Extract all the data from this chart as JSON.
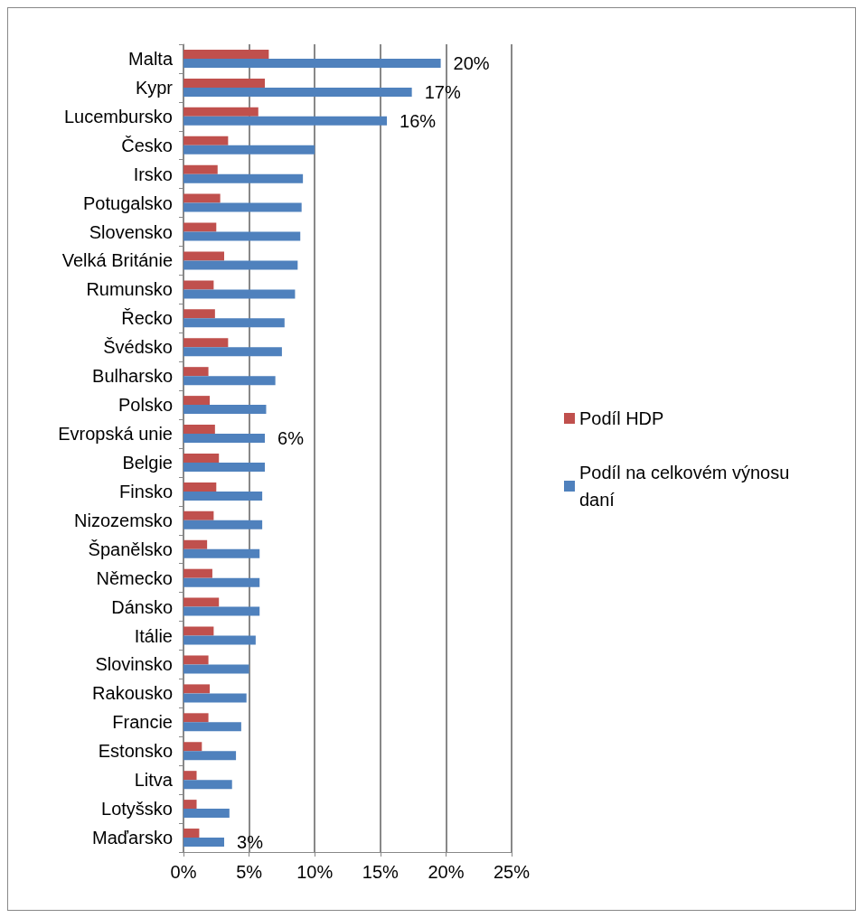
{
  "chart_data": {
    "type": "bar",
    "orientation": "horizontal",
    "categories": [
      "Malta",
      "Kypr",
      "Lucembursko",
      "Česko",
      "Irsko",
      "Potugalsko",
      "Slovensko",
      "Velká Británie",
      "Rumunsko",
      "Řecko",
      "Švédsko",
      "Bulharsko",
      "Polsko",
      "Evropská unie",
      "Belgie",
      "Finsko",
      "Nizozemsko",
      "Španělsko",
      "Německo",
      "Dánsko",
      "Itálie",
      "Slovinsko",
      "Rakousko",
      "Francie",
      "Estonsko",
      "Litva",
      "Lotyšsko",
      "Maďarsko"
    ],
    "series": [
      {
        "name": "Podíl HDP",
        "color": "#c0504d",
        "values": [
          6.5,
          6.2,
          5.7,
          3.4,
          2.6,
          2.8,
          2.5,
          3.1,
          2.3,
          2.4,
          3.4,
          1.9,
          2.0,
          2.4,
          2.7,
          2.5,
          2.3,
          1.8,
          2.2,
          2.7,
          2.3,
          1.9,
          2.0,
          1.9,
          1.4,
          1.0,
          1.0,
          1.2
        ]
      },
      {
        "name": "Podíl na celkovém výnosu daní",
        "color": "#4f81bd",
        "values": [
          19.6,
          17.4,
          15.5,
          10.0,
          9.1,
          9.0,
          8.9,
          8.7,
          8.5,
          7.7,
          7.5,
          7.0,
          6.3,
          6.2,
          6.2,
          6.0,
          6.0,
          5.8,
          5.8,
          5.8,
          5.5,
          5.0,
          4.8,
          4.4,
          4.0,
          3.7,
          3.5,
          3.1
        ],
        "value_labels": [
          "20%",
          "17%",
          "16%",
          null,
          null,
          null,
          null,
          null,
          null,
          null,
          null,
          null,
          null,
          "6%",
          null,
          null,
          null,
          null,
          null,
          null,
          null,
          null,
          null,
          null,
          null,
          null,
          null,
          "3%"
        ]
      }
    ],
    "xlim": [
      0,
      25
    ],
    "xticks": [
      {
        "value": 0,
        "label": "0%"
      },
      {
        "value": 5,
        "label": "5%"
      },
      {
        "value": 10,
        "label": "10%"
      },
      {
        "value": 15,
        "label": "15%"
      },
      {
        "value": 20,
        "label": "20%"
      },
      {
        "value": 25,
        "label": "25%"
      }
    ],
    "grid": "x",
    "legend": "right"
  }
}
